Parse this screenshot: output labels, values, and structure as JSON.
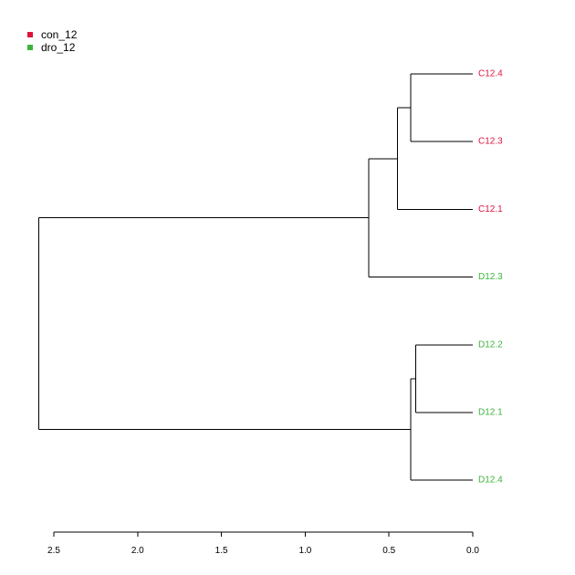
{
  "legend": {
    "entries": [
      {
        "label": "con_12",
        "color": "#dc143c"
      },
      {
        "label": "dro_12",
        "color": "#3cb43c"
      }
    ]
  },
  "chart_data": {
    "type": "dendrogram",
    "orientation": "horizontal",
    "leaves": [
      {
        "label": "C12.4",
        "group": "con_12",
        "color": "#dc143c"
      },
      {
        "label": "C12.3",
        "group": "con_12",
        "color": "#dc143c"
      },
      {
        "label": "C12.1",
        "group": "con_12",
        "color": "#dc143c"
      },
      {
        "label": "D12.3",
        "group": "dro_12",
        "color": "#3cb43c"
      },
      {
        "label": "D12.2",
        "group": "dro_12",
        "color": "#3cb43c"
      },
      {
        "label": "D12.1",
        "group": "dro_12",
        "color": "#3cb43c"
      },
      {
        "label": "D12.4",
        "group": "dro_12",
        "color": "#3cb43c"
      }
    ],
    "merges": [
      {
        "id": "m1",
        "children": [
          "C12.4",
          "C12.3"
        ],
        "height": 0.37
      },
      {
        "id": "m2",
        "children": [
          "m1",
          "C12.1"
        ],
        "height": 0.45
      },
      {
        "id": "m3",
        "children": [
          "m2",
          "D12.3"
        ],
        "height": 0.62
      },
      {
        "id": "m4",
        "children": [
          "D12.2",
          "D12.1"
        ],
        "height": 0.34
      },
      {
        "id": "m5",
        "children": [
          "m4",
          "D12.4"
        ],
        "height": 0.37
      },
      {
        "id": "m6",
        "children": [
          "m3",
          "m5"
        ],
        "height": 2.59
      }
    ],
    "axis": {
      "ticks": [
        2.5,
        2.0,
        1.5,
        1.0,
        0.5,
        0.0
      ],
      "tick_labels": [
        "2.5",
        "2.0",
        "1.5",
        "1.0",
        "0.5",
        "0.0"
      ],
      "reversed": true
    },
    "title": "",
    "xlabel": "",
    "ylabel": "",
    "grid": false,
    "legend_position": "top-left"
  }
}
